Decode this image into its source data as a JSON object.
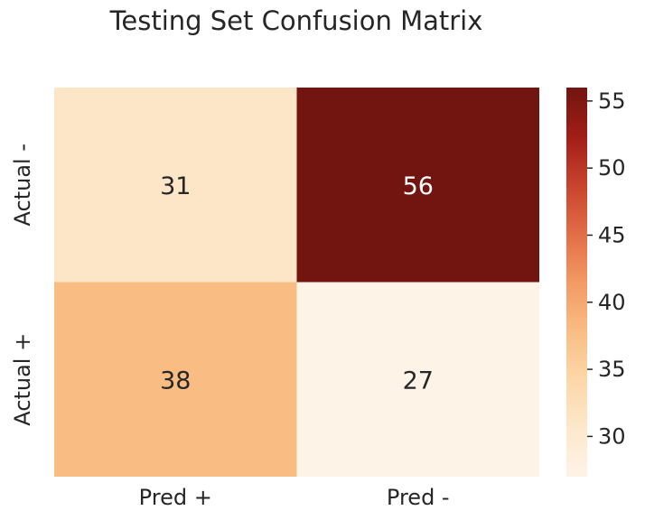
{
  "chart_data": {
    "type": "heatmap",
    "title": "Testing Set Confusion Matrix",
    "x_labels": [
      "Pred +",
      "Pred -"
    ],
    "y_labels": [
      "Actual -",
      "Actual +"
    ],
    "values": [
      [
        31,
        56
      ],
      [
        38,
        27
      ]
    ],
    "colormap": "OrRd",
    "colorbar": {
      "ticks": [
        30,
        35,
        40,
        45,
        50,
        55
      ],
      "range": [
        27,
        56
      ]
    },
    "grid": false,
    "legend": "colorbar-right"
  }
}
